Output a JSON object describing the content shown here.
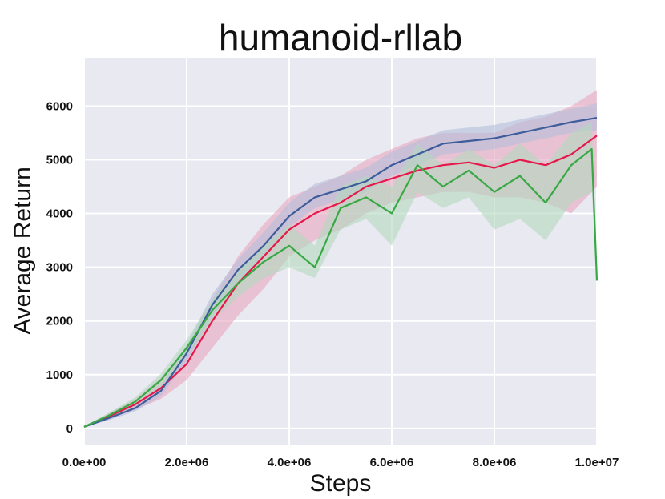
{
  "chart_data": {
    "type": "line",
    "title": "humanoid-rllab",
    "xlabel": "Steps",
    "ylabel": "Average Return",
    "xlim": [
      0,
      10000000
    ],
    "ylim": [
      -300,
      6900
    ],
    "xticks": [
      0,
      2000000,
      4000000,
      6000000,
      8000000,
      10000000
    ],
    "xtick_labels": [
      "0.0e+00",
      "2.0e+06",
      "4.0e+06",
      "6.0e+06",
      "8.0e+06",
      "1.0e+07"
    ],
    "yticks": [
      0,
      1000,
      2000,
      3000,
      4000,
      5000,
      6000
    ],
    "ytick_labels": [
      "0",
      "1000",
      "2000",
      "3000",
      "4000",
      "5000",
      "6000"
    ],
    "grid": true,
    "background": "#e9e9f1",
    "series": [
      {
        "color": "#e8174b",
        "band_color": "#e8a6c0",
        "x": [
          0,
          500000,
          1000000,
          1500000,
          2000000,
          2500000,
          3000000,
          3500000,
          4000000,
          4500000,
          5000000,
          5500000,
          6000000,
          6500000,
          7000000,
          7500000,
          8000000,
          8500000,
          9000000,
          9500000,
          10000000
        ],
        "y": [
          30,
          230,
          450,
          750,
          1200,
          2000,
          2700,
          3200,
          3700,
          4000,
          4200,
          4500,
          4650,
          4800,
          4900,
          4950,
          4850,
          5000,
          4900,
          5100,
          5450
        ],
        "lower": [
          20,
          170,
          350,
          550,
          900,
          1500,
          2100,
          2600,
          3200,
          3500,
          3700,
          4000,
          4200,
          4300,
          4400,
          4400,
          4300,
          4300,
          4200,
          4000,
          4500
        ],
        "upper": [
          40,
          290,
          550,
          950,
          1500,
          2400,
          3200,
          3800,
          4300,
          4500,
          4700,
          5000,
          5200,
          5400,
          5500,
          5500,
          5500,
          5700,
          5800,
          6000,
          6300
        ]
      },
      {
        "color": "#3d5c9a",
        "band_color": "#b4bfdb",
        "x": [
          0,
          500000,
          1000000,
          1500000,
          2000000,
          2500000,
          3000000,
          3500000,
          4000000,
          4500000,
          5000000,
          5500000,
          6000000,
          6500000,
          7000000,
          7500000,
          8000000,
          8500000,
          9000000,
          9500000,
          10000000
        ],
        "y": [
          30,
          200,
          380,
          700,
          1400,
          2300,
          2950,
          3400,
          3950,
          4300,
          4450,
          4600,
          4900,
          5100,
          5300,
          5350,
          5400,
          5500,
          5600,
          5700,
          5780
        ],
        "lower": [
          20,
          160,
          320,
          600,
          1250,
          2100,
          2750,
          3200,
          3750,
          4100,
          4250,
          4400,
          4700,
          4900,
          5100,
          5150,
          5200,
          5300,
          5400,
          5500,
          5550
        ],
        "upper": [
          40,
          240,
          440,
          800,
          1550,
          2500,
          3150,
          3650,
          4200,
          4550,
          4700,
          4850,
          5150,
          5350,
          5550,
          5600,
          5650,
          5750,
          5850,
          5950,
          6050
        ]
      },
      {
        "color": "#38a845",
        "band_color": "#b3d8be",
        "x": [
          0,
          500000,
          1000000,
          1500000,
          2000000,
          2500000,
          3000000,
          3500000,
          4000000,
          4500000,
          5000000,
          5500000,
          6000000,
          6500000,
          7000000,
          7500000,
          8000000,
          8500000,
          9000000,
          9500000,
          9900000,
          10000000
        ],
        "y": [
          30,
          250,
          500,
          900,
          1500,
          2200,
          2700,
          3100,
          3400,
          3000,
          4100,
          4300,
          4000,
          4900,
          4500,
          4800,
          4400,
          4700,
          4200,
          4900,
          5200,
          2750
        ],
        "lower": [
          20,
          200,
          420,
          780,
          1350,
          2000,
          2450,
          2800,
          3000,
          2800,
          3700,
          3900,
          3400,
          4400,
          4100,
          4300,
          3700,
          3900,
          3500,
          4200,
          4400,
          2750
        ],
        "upper": [
          40,
          300,
          580,
          1020,
          1650,
          2400,
          2950,
          3400,
          3800,
          3400,
          4500,
          4700,
          4500,
          5300,
          4900,
          5200,
          4900,
          5300,
          4900,
          5500,
          5700,
          2750
        ]
      }
    ]
  }
}
